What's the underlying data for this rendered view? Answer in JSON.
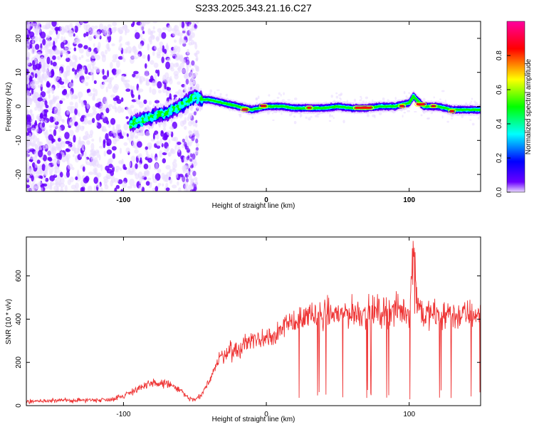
{
  "chart_data": [
    {
      "type": "heatmap",
      "title": "S233.2025.343.21.16.C27",
      "xlabel": "Height of straight line (km)",
      "ylabel": "Frequency (Hz)",
      "xlim": [
        -168,
        150
      ],
      "ylim": [
        -25,
        25
      ],
      "xticks": [
        -100,
        0,
        100
      ],
      "xtick_labels": [
        "-100",
        "0",
        "100"
      ],
      "yticks": [
        -20,
        -10,
        0,
        10,
        20
      ],
      "ytick_labels": [
        "-20",
        "-10",
        "0",
        "10",
        "20"
      ],
      "colorbar": {
        "label": "Normalized spectral amplitude",
        "range": [
          0,
          1
        ],
        "ticks": [
          0.0,
          0.2,
          0.4,
          0.6,
          0.8
        ],
        "tick_labels": [
          "0.0",
          "0.2",
          "0.4",
          "0.6",
          "0.8"
        ],
        "colors": [
          "#e8d8ff",
          "#6a00ff",
          "#0000ff",
          "#00ffff",
          "#00ff00",
          "#ffff00",
          "#ff0000",
          "#ff00a0"
        ]
      },
      "ridge": {
        "description_points_x": [
          -95,
          -80,
          -70,
          -60,
          -50,
          -45,
          -40,
          -30,
          -20,
          -10,
          0,
          10,
          20,
          30,
          40,
          50,
          60,
          70,
          80,
          90,
          100,
          103,
          110,
          120,
          130,
          140,
          150
        ],
        "frequency_hz": [
          -5,
          -3,
          -2,
          0,
          3,
          2,
          2,
          1,
          0,
          -1,
          0,
          0,
          -0.5,
          -0.5,
          -0.5,
          0,
          -0.5,
          -0.5,
          0,
          0,
          1,
          3,
          0,
          0,
          -1,
          -1,
          -1
        ]
      }
    },
    {
      "type": "line",
      "xlabel": "Height of straight line (km)",
      "ylabel": "SNR (10 * v/v)",
      "xlim": [
        -168,
        150
      ],
      "ylim": [
        0,
        780
      ],
      "xticks": [
        -100,
        0,
        100
      ],
      "xtick_labels": [
        "-100",
        "0",
        "100"
      ],
      "yticks": [
        0,
        200,
        400,
        600
      ],
      "ytick_labels": [
        "0",
        "200",
        "400",
        "600"
      ],
      "series": [
        {
          "name": "SNR",
          "color": "#ee3333",
          "envelope_x": [
            -168,
            -110,
            -100,
            -90,
            -80,
            -70,
            -60,
            -55,
            -50,
            -45,
            -40,
            -35,
            -30,
            -25,
            -20,
            -15,
            -10,
            -5,
            0,
            5,
            10,
            15,
            20,
            25,
            30,
            40,
            50,
            60,
            70,
            80,
            90,
            95,
            100,
            103,
            105,
            110,
            120,
            130,
            140,
            150
          ],
          "envelope_y": [
            20,
            28,
            45,
            80,
            100,
            105,
            70,
            35,
            25,
            50,
            120,
            190,
            240,
            260,
            250,
            290,
            310,
            300,
            320,
            330,
            350,
            370,
            390,
            400,
            410,
            420,
            425,
            430,
            430,
            435,
            440,
            440,
            430,
            720,
            500,
            420,
            420,
            415,
            420,
            425
          ]
        }
      ]
    }
  ]
}
